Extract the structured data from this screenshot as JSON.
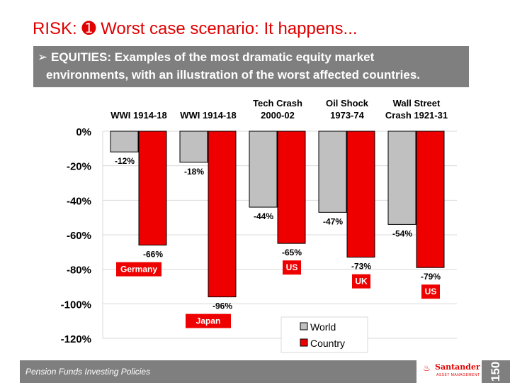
{
  "slide": {
    "title": "RISK: ➊ Worst case scenario: It happens...",
    "subtitle_bullet": "➢",
    "subtitle_line1": "EQUITIES: Examples of the most dramatic equity market",
    "subtitle_line2": "environments, with an illustration of the worst affected countries.",
    "footer": "Pension Funds Investing Policies",
    "logo_mark": "♨",
    "logo_name": "Santander",
    "logo_sub": "ASSET MANAGEMENT",
    "badge": "150"
  },
  "colors": {
    "accent": "#e00000",
    "world": "#c0c0c0",
    "country": "#ee0000",
    "banner": "#7f7f7f"
  },
  "chart_data": {
    "type": "bar",
    "categories": [
      [
        "WWI 1914-18"
      ],
      [
        "WWI 1914-18"
      ],
      [
        "Tech Crash",
        "2000-02"
      ],
      [
        "Oil Shock",
        "1973-74"
      ],
      [
        "Wall Street",
        "Crash 1921-31"
      ]
    ],
    "series": [
      {
        "name": "World",
        "values": [
          -12,
          -18,
          -44,
          -47,
          -54
        ],
        "labels": [
          "-12%",
          "-18%",
          "-44%",
          "-47%",
          "-54%"
        ]
      },
      {
        "name": "Country",
        "values": [
          -66,
          -96,
          -65,
          -73,
          -79
        ],
        "labels": [
          "-66%",
          "-96%",
          "-65%",
          "-73%",
          "-79%"
        ]
      }
    ],
    "countries": [
      "Germany",
      "Japan",
      "US",
      "UK",
      "US"
    ],
    "ylim": [
      -120,
      0
    ],
    "yticks": [
      0,
      -20,
      -40,
      -60,
      -80,
      -100,
      -120
    ],
    "ytick_labels": [
      "0%",
      "-20%",
      "-40%",
      "-60%",
      "-80%",
      "-100%",
      "-120%"
    ],
    "legend": [
      "World",
      "Country"
    ],
    "legend_position": "bottom-right"
  }
}
